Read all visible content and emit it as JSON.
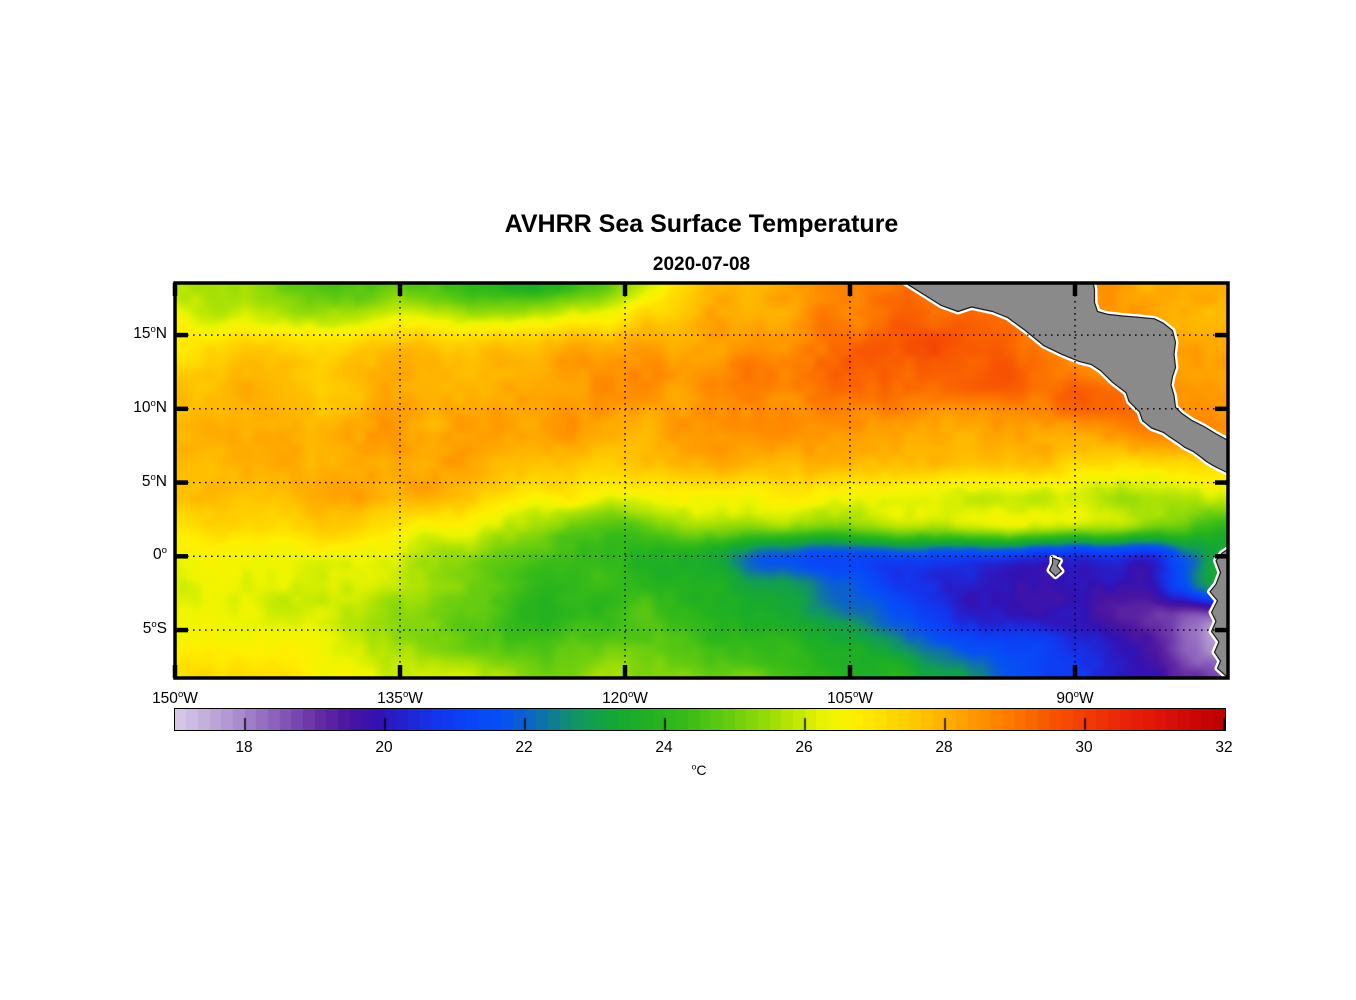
{
  "title": "AVHRR Sea Surface Temperature",
  "subtitle": "2020-07-08",
  "colors": {
    "background": "#ffffff",
    "land_fill": "#8a8a8a",
    "land_rim": "#ffffff",
    "coastline": "#1a1a1a",
    "frame": "#000000",
    "grid": "#000000",
    "text": "#000000"
  },
  "axes": {
    "lat_ticks": [
      {
        "label": "15°N",
        "deg": 15
      },
      {
        "label": "10°N",
        "deg": 10
      },
      {
        "label": "5°N",
        "deg": 5
      },
      {
        "label": "0°",
        "deg": 0
      },
      {
        "label": "5°S",
        "deg": -5
      }
    ],
    "lon_ticks": [
      {
        "label": "150°W",
        "deg": -150
      },
      {
        "label": "135°W",
        "deg": -135
      },
      {
        "label": "120°W",
        "deg": -120
      },
      {
        "label": "105°W",
        "deg": -105
      },
      {
        "label": "90°W",
        "deg": -90
      }
    ],
    "lat_range": [
      -8.25,
      18.53
    ],
    "lon_range": [
      -150,
      -79.8
    ],
    "grid_style": "dotted",
    "box": true
  },
  "colorbar": {
    "unit_label": "°C",
    "tick_labels": [
      "18",
      "20",
      "22",
      "24",
      "26",
      "28",
      "30",
      "32"
    ],
    "tick_values": [
      18,
      20,
      22,
      24,
      26,
      28,
      30,
      32
    ],
    "min": 17,
    "max": 32,
    "bands": 90,
    "orientation": "horizontal"
  },
  "chart_data": {
    "type": "heatmap",
    "title": "AVHRR Sea Surface Temperature",
    "subtitle": "2020-07-08",
    "units": "°C",
    "value_range": [
      17,
      32
    ],
    "lon_grid": [
      -150,
      -145,
      -140,
      -135,
      -130,
      -125,
      -120,
      -115,
      -110,
      -105,
      -100,
      -95,
      -90,
      -85,
      -80
    ],
    "lat_grid": [
      18.5,
      16.5,
      14.4,
      12.4,
      10.3,
      8.3,
      6.2,
      4.2,
      2.1,
      0.0,
      -2.0,
      -4.1,
      -6.1,
      -8.2
    ],
    "sst": [
      [
        26.0,
        25.3,
        24.4,
        24.8,
        24.2,
        23.8,
        25.4,
        27.4,
        28.2,
        28.6,
        29.0,
        28.8,
        28.5,
        28.2,
        28.2
      ],
      [
        26.2,
        25.8,
        25.4,
        25.8,
        25.4,
        25.8,
        26.8,
        27.9,
        28.3,
        28.8,
        29.4,
        29.0,
        28.6,
        28.3,
        28.1
      ],
      [
        27.0,
        27.2,
        27.0,
        27.5,
        27.3,
        27.8,
        28.0,
        28.3,
        28.6,
        29.1,
        29.6,
        29.2,
        28.7,
        28.4,
        28.3
      ],
      [
        27.5,
        27.8,
        27.6,
        28.0,
        27.8,
        28.2,
        28.4,
        28.7,
        29.0,
        29.2,
        29.1,
        29.4,
        28.8,
        28.5,
        28.4
      ],
      [
        27.8,
        28.0,
        27.8,
        28.2,
        28.0,
        28.3,
        28.2,
        28.4,
        28.6,
        28.8,
        28.6,
        28.7,
        29.2,
        28.9,
        28.4
      ],
      [
        28.0,
        28.2,
        28.0,
        28.3,
        28.1,
        28.2,
        28.0,
        28.2,
        28.4,
        28.4,
        28.2,
        28.3,
        28.4,
        28.6,
        28.3
      ],
      [
        27.8,
        28.0,
        28.2,
        28.4,
        28.0,
        27.8,
        27.6,
        27.8,
        28.0,
        28.0,
        27.8,
        27.6,
        27.3,
        27.0,
        27.2
      ],
      [
        27.5,
        27.8,
        28.0,
        28.0,
        27.4,
        26.8,
        26.3,
        26.4,
        26.6,
        26.5,
        26.3,
        26.2,
        26.0,
        25.6,
        26.0
      ],
      [
        27.0,
        27.2,
        27.3,
        26.8,
        26.2,
        25.3,
        24.7,
        25.6,
        25.4,
        25.2,
        25.8,
        26.0,
        26.0,
        25.2,
        24.2
      ],
      [
        26.5,
        26.4,
        26.2,
        26.0,
        25.2,
        24.5,
        24.0,
        23.6,
        21.8,
        21.3,
        21.5,
        21.0,
        20.5,
        20.8,
        23.4
      ],
      [
        26.3,
        26.2,
        26.0,
        25.8,
        25.0,
        24.2,
        24.2,
        23.8,
        23.1,
        21.8,
        20.6,
        20.1,
        19.8,
        20.2,
        23.2
      ],
      [
        26.5,
        26.3,
        26.0,
        25.5,
        24.8,
        24.0,
        24.5,
        24.0,
        23.5,
        22.4,
        21.0,
        20.2,
        19.8,
        19.2,
        18.0
      ],
      [
        26.8,
        26.5,
        26.2,
        25.8,
        25.2,
        24.5,
        25.0,
        24.5,
        24.0,
        23.4,
        22.4,
        21.4,
        20.4,
        19.4,
        17.6
      ],
      [
        27.4,
        27.1,
        26.6,
        26.2,
        25.8,
        25.2,
        25.5,
        25.0,
        24.5,
        24.0,
        23.4,
        22.0,
        20.8,
        19.8,
        18.4
      ]
    ],
    "colormap_stops": [
      [
        17.0,
        "#D8CCEA"
      ],
      [
        17.4,
        "#C6B2DE"
      ],
      [
        17.8,
        "#B195D2"
      ],
      [
        18.2,
        "#9A74C4"
      ],
      [
        18.7,
        "#7C4BB2"
      ],
      [
        19.1,
        "#6229A4"
      ],
      [
        19.5,
        "#4A14A2"
      ],
      [
        19.9,
        "#3312B4"
      ],
      [
        20.3,
        "#2323D2"
      ],
      [
        20.7,
        "#1534EC"
      ],
      [
        21.2,
        "#0A44F8"
      ],
      [
        21.7,
        "#0652F2"
      ],
      [
        22.1,
        "#0E66C2"
      ],
      [
        22.5,
        "#128484"
      ],
      [
        22.9,
        "#129E52"
      ],
      [
        23.4,
        "#17AA30"
      ],
      [
        23.9,
        "#26B31E"
      ],
      [
        24.4,
        "#3FBE17"
      ],
      [
        24.9,
        "#66CC10"
      ],
      [
        25.4,
        "#92DA09"
      ],
      [
        25.9,
        "#C2E903"
      ],
      [
        26.3,
        "#EEF500"
      ],
      [
        26.7,
        "#FFF000"
      ],
      [
        27.1,
        "#FFDF00"
      ],
      [
        27.6,
        "#FFC700"
      ],
      [
        28.1,
        "#FFAB00"
      ],
      [
        28.6,
        "#FF8D00"
      ],
      [
        29.1,
        "#FC6F00"
      ],
      [
        29.6,
        "#F75203"
      ],
      [
        30.1,
        "#F13806"
      ],
      [
        30.6,
        "#E92309"
      ],
      [
        31.1,
        "#DE120A"
      ],
      [
        31.6,
        "#CC0606"
      ],
      [
        32.0,
        "#BB0000"
      ]
    ],
    "land": {
      "central_america": [
        [
          -101.3,
          18.53
        ],
        [
          -100.0,
          17.7
        ],
        [
          -98.9,
          17.0
        ],
        [
          -97.8,
          16.6
        ],
        [
          -96.9,
          16.9
        ],
        [
          -95.5,
          16.6
        ],
        [
          -94.5,
          16.2
        ],
        [
          -93.3,
          15.3
        ],
        [
          -92.1,
          14.3
        ],
        [
          -90.9,
          13.7
        ],
        [
          -89.7,
          13.2
        ],
        [
          -88.9,
          13.0
        ],
        [
          -88.3,
          12.6
        ],
        [
          -87.5,
          11.8
        ],
        [
          -86.6,
          11.1
        ],
        [
          -86.4,
          10.5
        ],
        [
          -85.7,
          9.8
        ],
        [
          -85.5,
          9.2
        ],
        [
          -84.9,
          8.7
        ],
        [
          -84.1,
          8.4
        ],
        [
          -83.7,
          8.1
        ],
        [
          -83.1,
          7.7
        ],
        [
          -82.7,
          7.4
        ],
        [
          -82.1,
          7.1
        ],
        [
          -81.7,
          6.8
        ],
        [
          -81.2,
          6.4
        ],
        [
          -80.7,
          6.1
        ],
        [
          -80.2,
          5.85
        ],
        [
          -79.7,
          5.6
        ],
        [
          -79.7,
          7.8
        ],
        [
          -80.6,
          8.3
        ],
        [
          -81.4,
          8.8
        ],
        [
          -82.2,
          9.2
        ],
        [
          -82.9,
          9.7
        ],
        [
          -83.3,
          10.1
        ],
        [
          -83.4,
          10.9
        ],
        [
          -83.6,
          11.6
        ],
        [
          -83.5,
          12.2
        ],
        [
          -83.3,
          12.8
        ],
        [
          -83.4,
          13.7
        ],
        [
          -83.3,
          14.5
        ],
        [
          -83.5,
          15.3
        ],
        [
          -84.1,
          15.8
        ],
        [
          -84.7,
          16.1
        ],
        [
          -85.7,
          16.2
        ],
        [
          -86.9,
          16.3
        ],
        [
          -87.8,
          16.4
        ],
        [
          -88.5,
          16.6
        ],
        [
          -88.7,
          17.2
        ],
        [
          -88.7,
          18.1
        ],
        [
          -88.8,
          18.6
        ]
      ],
      "south_america": [
        [
          -79.7,
          0.56
        ],
        [
          -80.2,
          0.22
        ],
        [
          -80.6,
          -0.3
        ],
        [
          -80.3,
          -1.1
        ],
        [
          -80.6,
          -1.9
        ],
        [
          -81.0,
          -2.4
        ],
        [
          -80.5,
          -3.0
        ],
        [
          -80.9,
          -3.8
        ],
        [
          -80.6,
          -4.4
        ],
        [
          -80.9,
          -5.1
        ],
        [
          -80.4,
          -5.8
        ],
        [
          -80.7,
          -6.5
        ],
        [
          -80.3,
          -7.1
        ],
        [
          -80.5,
          -7.6
        ],
        [
          -80.0,
          -8.05
        ],
        [
          -79.7,
          -8.3
        ]
      ],
      "galapagos": [
        [
          -91.5,
          -0.1
        ],
        [
          -91.0,
          -0.3
        ],
        [
          -91.2,
          -0.65
        ],
        [
          -90.9,
          -1.0
        ],
        [
          -91.3,
          -1.35
        ],
        [
          -91.7,
          -0.95
        ],
        [
          -91.5,
          -0.5
        ]
      ]
    },
    "legend_position": "bottom",
    "grid": true
  }
}
